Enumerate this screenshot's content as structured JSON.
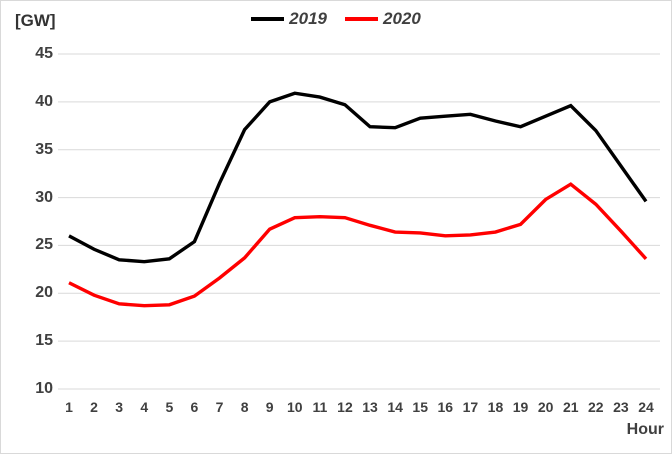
{
  "chart_data": {
    "type": "line",
    "unit_label": "[GW]",
    "xlabel": "Hour",
    "x": [
      1,
      2,
      3,
      4,
      5,
      6,
      7,
      8,
      9,
      10,
      11,
      12,
      13,
      14,
      15,
      16,
      17,
      18,
      19,
      20,
      21,
      22,
      23,
      24
    ],
    "series": [
      {
        "name": "2019",
        "color": "#000000",
        "values": [
          26.0,
          24.6,
          23.5,
          23.3,
          23.6,
          25.4,
          31.5,
          37.1,
          40.0,
          40.9,
          40.5,
          39.7,
          37.4,
          37.3,
          38.3,
          38.5,
          38.7,
          38.0,
          37.4,
          38.5,
          39.6,
          37.0,
          33.3,
          29.6
        ]
      },
      {
        "name": "2020",
        "color": "#ff0000",
        "values": [
          21.1,
          19.8,
          18.9,
          18.7,
          18.8,
          19.7,
          21.6,
          23.7,
          26.7,
          27.9,
          28.0,
          27.9,
          27.1,
          26.4,
          26.3,
          26.0,
          26.1,
          26.4,
          27.2,
          29.8,
          31.4,
          29.3,
          26.5,
          23.6
        ]
      }
    ],
    "ylim": [
      10,
      45
    ],
    "yticks": [
      10,
      15,
      20,
      25,
      30,
      35,
      40,
      45
    ],
    "grid": true,
    "legend_position": "top-center"
  },
  "colors": {
    "grid": "#d9d9d9",
    "text": "#404040",
    "background": "#ffffff",
    "series_2019": "#000000",
    "series_2020": "#ff0000"
  }
}
